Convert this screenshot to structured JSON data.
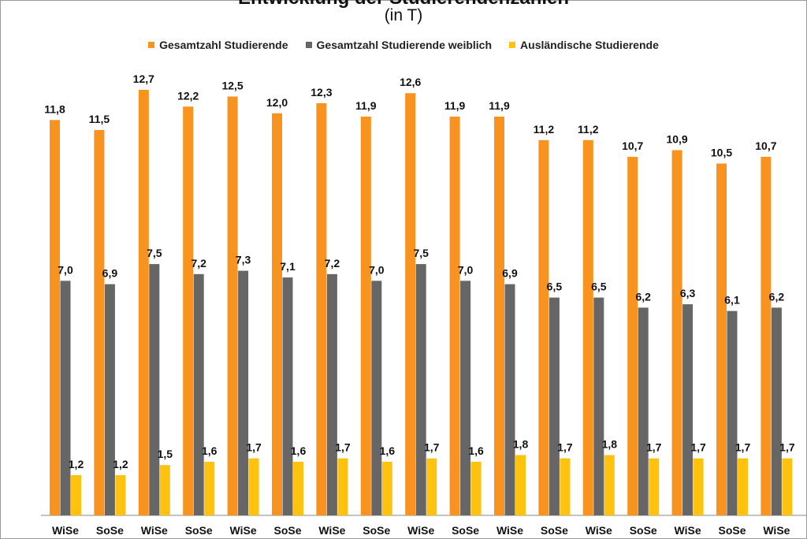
{
  "chart_data": {
    "type": "bar",
    "title": "Entwicklung der Studierendenzahlen",
    "subtitle": "(in T)",
    "categories": [
      "WiSe",
      "SoSe",
      "WiSe",
      "SoSe",
      "WiSe",
      "SoSe",
      "WiSe",
      "SoSe",
      "WiSe",
      "SoSe",
      "WiSe",
      "SoSe",
      "WiSe",
      "SoSe",
      "WiSe",
      "SoSe",
      "WiSe"
    ],
    "series": [
      {
        "name": "Gesamtzahl Studierende",
        "color": "#f7931e",
        "values": [
          11.8,
          11.5,
          12.7,
          12.2,
          12.5,
          12.0,
          12.3,
          11.9,
          12.6,
          11.9,
          11.9,
          11.2,
          11.2,
          10.7,
          10.9,
          10.5,
          10.7
        ],
        "labels": [
          "11,8",
          "11,5",
          "12,7",
          "12,2",
          "12,5",
          "12,0",
          "12,3",
          "11,9",
          "12,6",
          "11,9",
          "11,9",
          "11,2",
          "11,2",
          "10,7",
          "10,9",
          "10,5",
          "10,7"
        ]
      },
      {
        "name": "Gesamtzahl Studierende weiblich",
        "color": "#666666",
        "values": [
          7.0,
          6.9,
          7.5,
          7.2,
          7.3,
          7.1,
          7.2,
          7.0,
          7.5,
          7.0,
          6.9,
          6.5,
          6.5,
          6.2,
          6.3,
          6.1,
          6.2
        ],
        "labels": [
          "7,0",
          "6,9",
          "7,5",
          "7,2",
          "7,3",
          "7,1",
          "7,2",
          "7,0",
          "7,5",
          "7,0",
          "6,9",
          "6,5",
          "6,5",
          "6,2",
          "6,3",
          "6,1",
          "6,2"
        ]
      },
      {
        "name": "Ausländische Studierende",
        "color": "#ffc20e",
        "values": [
          1.2,
          1.2,
          1.5,
          1.6,
          1.7,
          1.6,
          1.7,
          1.6,
          1.7,
          1.6,
          1.8,
          1.7,
          1.8,
          1.7,
          1.7,
          1.7,
          1.7
        ],
        "labels": [
          "1,2",
          "1,2",
          "1,5",
          "1,6",
          "1,7",
          "1,6",
          "1,7",
          "1,6",
          "1,7",
          "1,6",
          "1,8",
          "1,7",
          "1,8",
          "1,7",
          "1,7",
          "1,7",
          "1,7"
        ]
      }
    ],
    "ylim": [
      0,
      14
    ],
    "grid": false,
    "legend_position": "top"
  }
}
